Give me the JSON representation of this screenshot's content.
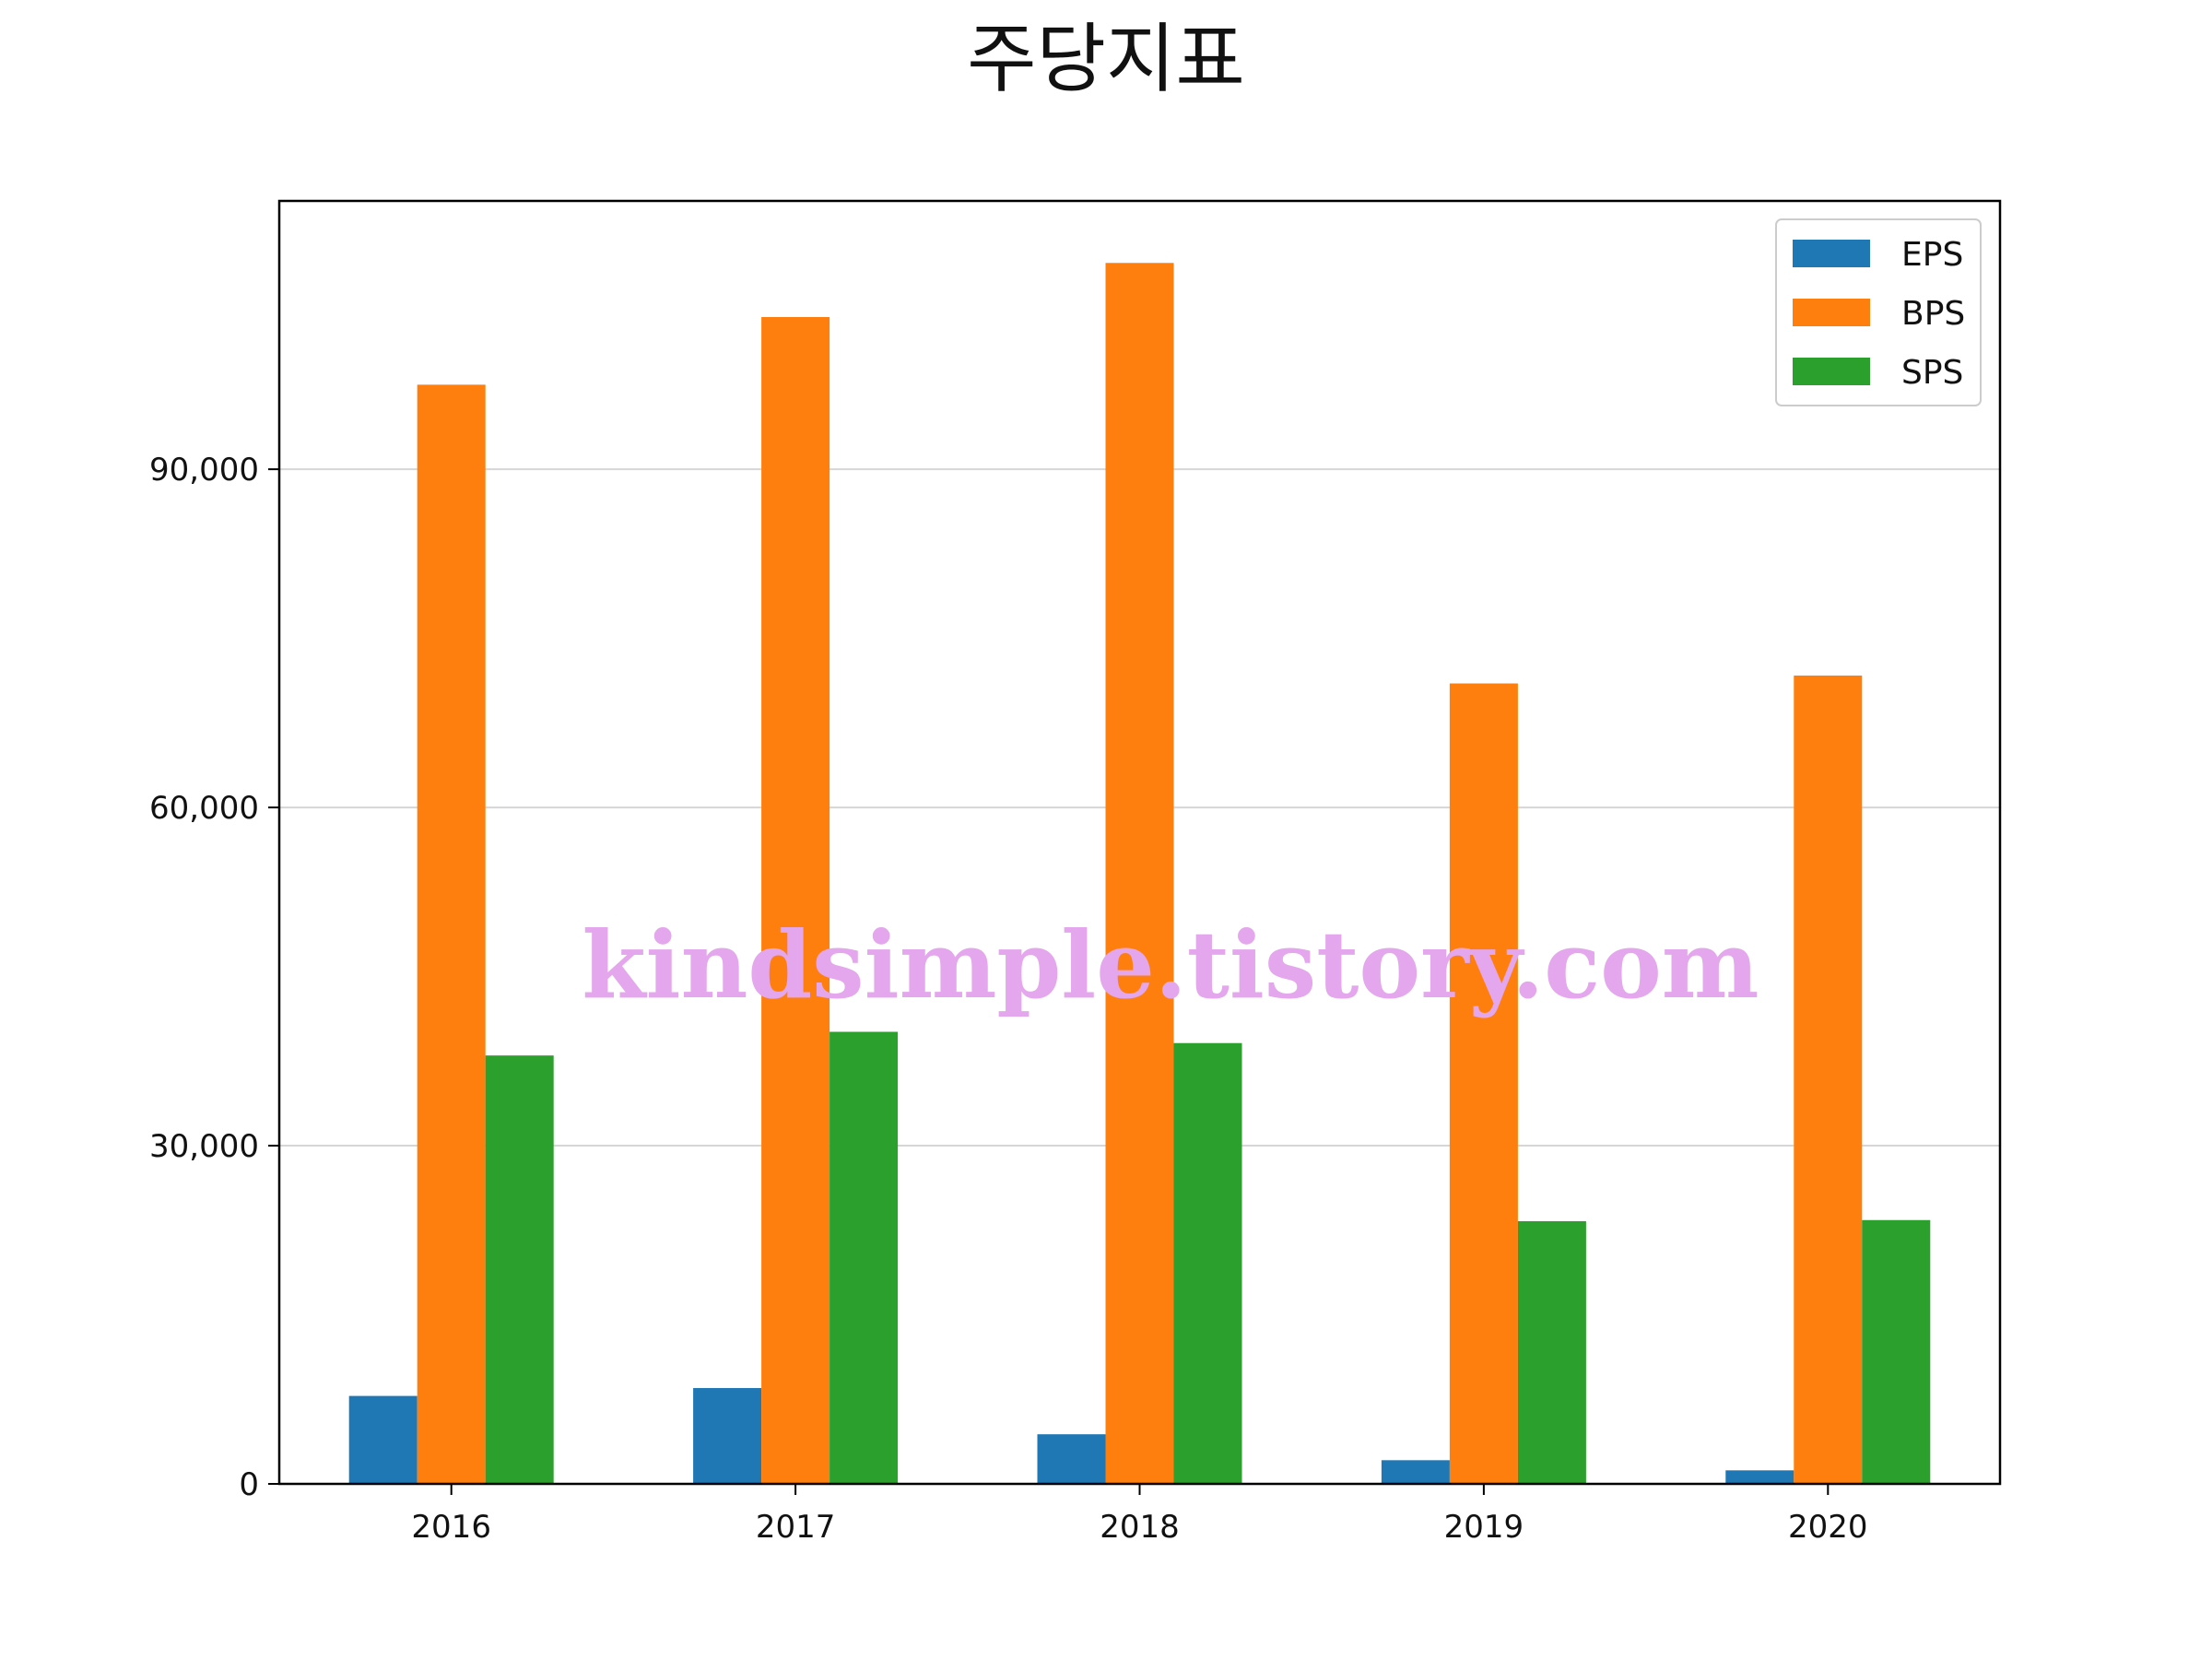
{
  "chart_data": {
    "type": "bar",
    "title": "주당지표",
    "xlabel": "",
    "ylabel": "",
    "categories": [
      "2016",
      "2017",
      "2018",
      "2019",
      "2020"
    ],
    "series": [
      {
        "name": "EPS",
        "values": [
          7800,
          8500,
          4400,
          2100,
          1200
        ],
        "color": "#1f77b4"
      },
      {
        "name": "BPS",
        "values": [
          97500,
          103500,
          108300,
          71000,
          71700
        ],
        "color": "#ff7f0e"
      },
      {
        "name": "SPS",
        "values": [
          38000,
          40100,
          39100,
          23300,
          23400
        ],
        "color": "#2ca02c"
      }
    ],
    "ylim": [
      0,
      113800
    ],
    "yticks": [
      0,
      30000,
      60000,
      90000
    ],
    "ytick_labels": [
      "0",
      "30,000",
      "60,000",
      "90,000"
    ],
    "grid": "y",
    "legend_position": "top-right"
  },
  "watermark": {
    "text": "kindsimple.tistory.com",
    "color": "#e4a6ec"
  }
}
